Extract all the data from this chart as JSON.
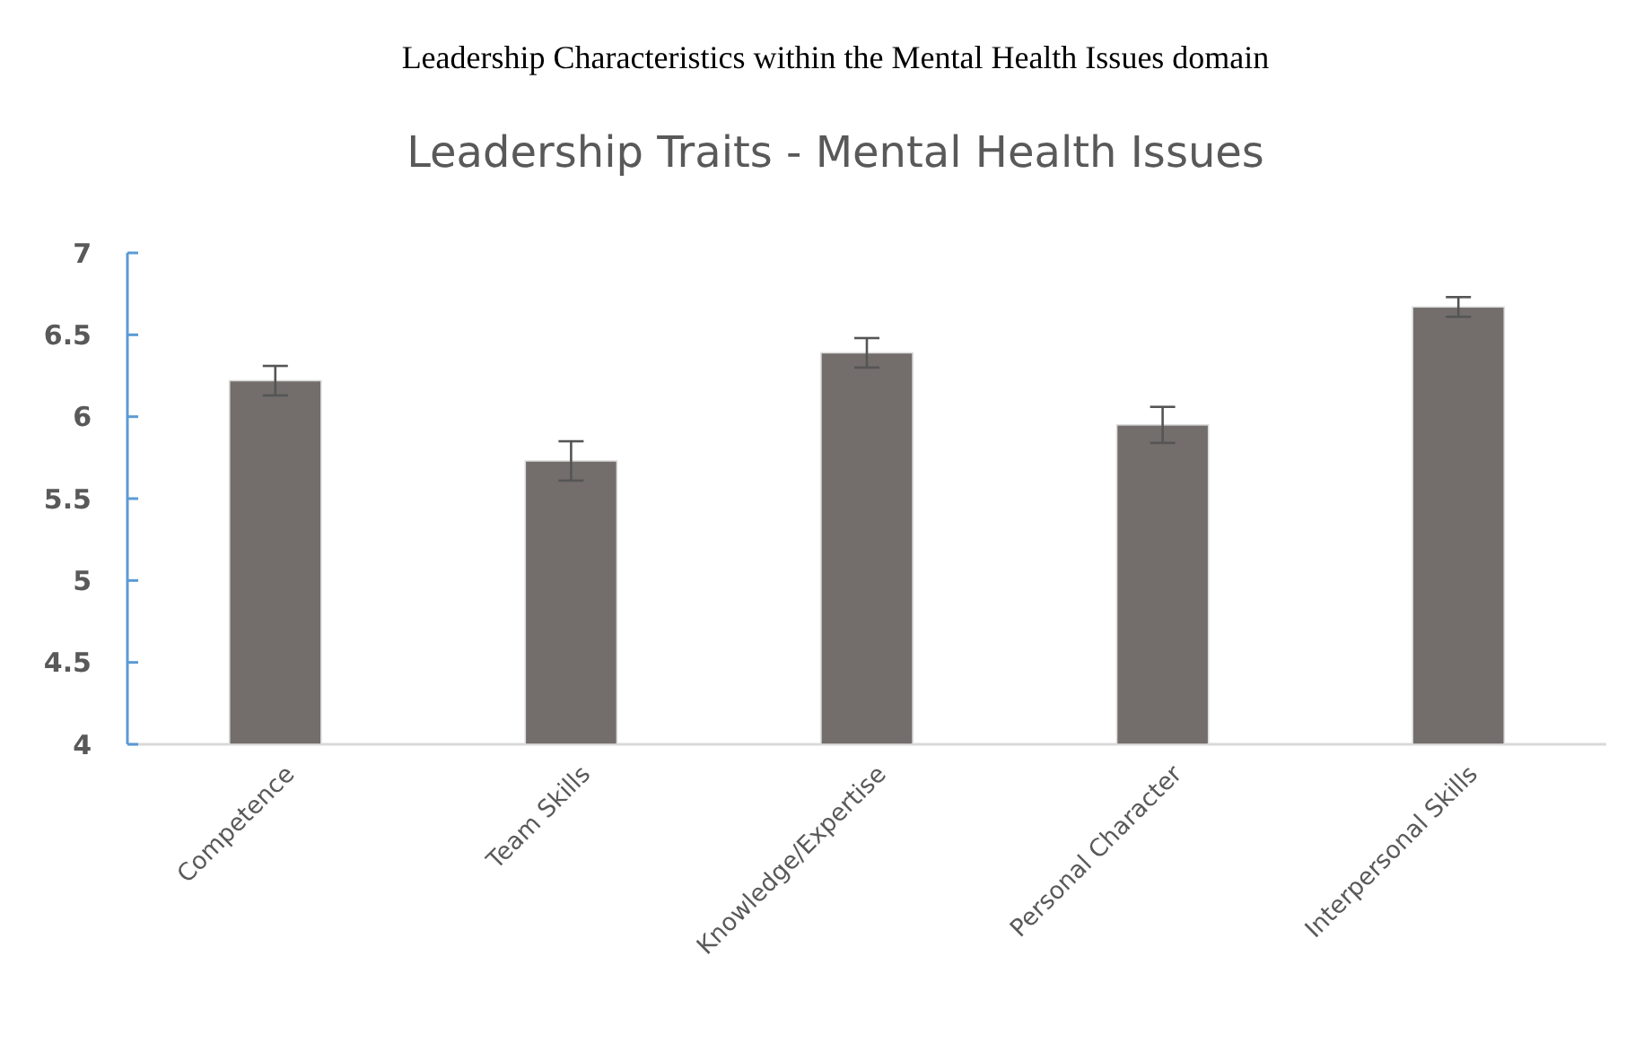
{
  "chart_data": {
    "type": "bar",
    "title": "Leadership Characteristics within the Mental Health Issues domain",
    "subtitle": "Leadership Traits - Mental Health Issues",
    "categories": [
      "Competence",
      "Team Skills",
      "Knowledge/Expertise",
      "Personal Character",
      "Interpersonal Skills"
    ],
    "values": [
      6.22,
      5.73,
      6.39,
      5.95,
      6.67
    ],
    "errors": [
      0.09,
      0.12,
      0.09,
      0.11,
      0.06
    ],
    "color": "#736e6c",
    "ylim": [
      4,
      7
    ],
    "yticks": [
      4,
      4.5,
      5,
      5.5,
      6,
      6.5,
      7
    ],
    "grid": false
  }
}
